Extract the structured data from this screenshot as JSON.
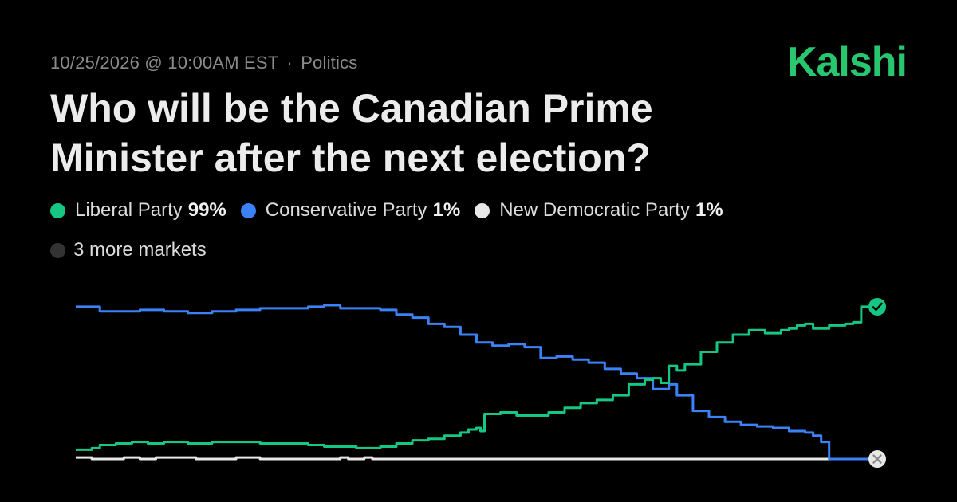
{
  "meta": {
    "date": "10/25/2026",
    "time": "@ 10:00AM EST",
    "separator": "·",
    "category": "Politics"
  },
  "brand": {
    "name": "Kalshi",
    "color": "#28c76f"
  },
  "title": "Who will be the Canadian Prime Minister after the next election?",
  "legend": {
    "items": [
      {
        "name": "Liberal Party",
        "value": "99%",
        "color": "#16c784"
      },
      {
        "name": "Conservative Party",
        "value": "1%",
        "color": "#3b82f6"
      },
      {
        "name": "New Democratic Party",
        "value": "1%",
        "color": "#e8e8e8"
      }
    ],
    "more": {
      "label": "3 more markets",
      "color": "#333333"
    }
  },
  "chart_data": {
    "type": "line",
    "x_range": [
      0,
      100
    ],
    "y_range": [
      0,
      100
    ],
    "grid": false,
    "resolution_markers": [
      {
        "series": "Liberal Party",
        "icon": "check-icon",
        "value": 99
      },
      {
        "series": "New Democratic Party",
        "icon": "x-icon",
        "value": 1
      }
    ],
    "series": [
      {
        "name": "Liberal Party",
        "color": "#16c784",
        "points": [
          [
            0,
            7
          ],
          [
            2,
            8
          ],
          [
            3,
            10
          ],
          [
            5,
            11
          ],
          [
            7,
            12
          ],
          [
            9,
            11
          ],
          [
            11,
            12
          ],
          [
            14,
            11
          ],
          [
            17,
            12
          ],
          [
            20,
            12
          ],
          [
            23,
            11
          ],
          [
            26,
            11
          ],
          [
            29,
            10
          ],
          [
            31,
            9
          ],
          [
            33,
            9
          ],
          [
            35,
            8
          ],
          [
            38,
            9
          ],
          [
            40,
            11
          ],
          [
            42,
            13
          ],
          [
            44,
            14
          ],
          [
            46,
            16
          ],
          [
            48,
            18
          ],
          [
            49,
            20
          ],
          [
            50,
            21
          ],
          [
            50.5,
            19
          ],
          [
            51,
            30
          ],
          [
            53,
            31
          ],
          [
            55,
            29
          ],
          [
            57,
            29
          ],
          [
            59,
            31
          ],
          [
            61,
            34
          ],
          [
            63,
            37
          ],
          [
            65,
            39
          ],
          [
            67,
            42
          ],
          [
            69,
            49
          ],
          [
            71,
            52
          ],
          [
            72,
            53
          ],
          [
            73,
            50
          ],
          [
            74,
            61
          ],
          [
            75,
            58
          ],
          [
            76,
            62
          ],
          [
            78,
            70
          ],
          [
            80,
            76
          ],
          [
            82,
            81
          ],
          [
            84,
            84
          ],
          [
            86,
            82
          ],
          [
            88,
            84
          ],
          [
            89,
            85
          ],
          [
            90,
            87
          ],
          [
            91,
            88
          ],
          [
            92,
            85
          ],
          [
            94,
            87
          ],
          [
            96,
            88
          ],
          [
            97,
            89
          ],
          [
            98,
            99
          ],
          [
            100,
            99
          ]
        ]
      },
      {
        "name": "Conservative Party",
        "color": "#3b82f6",
        "points": [
          [
            0,
            99
          ],
          [
            3,
            96
          ],
          [
            5,
            96
          ],
          [
            8,
            97
          ],
          [
            11,
            96
          ],
          [
            14,
            95
          ],
          [
            17,
            96
          ],
          [
            20,
            97
          ],
          [
            23,
            98
          ],
          [
            26,
            98
          ],
          [
            29,
            99
          ],
          [
            31,
            100
          ],
          [
            33,
            98
          ],
          [
            35,
            98
          ],
          [
            38,
            97
          ],
          [
            40,
            94
          ],
          [
            42,
            92
          ],
          [
            44,
            88
          ],
          [
            46,
            86
          ],
          [
            48,
            81
          ],
          [
            50,
            76
          ],
          [
            52,
            74
          ],
          [
            54,
            75
          ],
          [
            56,
            73
          ],
          [
            58,
            66
          ],
          [
            60,
            67
          ],
          [
            62,
            65
          ],
          [
            64,
            63
          ],
          [
            66,
            59
          ],
          [
            68,
            56
          ],
          [
            70,
            53
          ],
          [
            72,
            46
          ],
          [
            74,
            49
          ],
          [
            75,
            42
          ],
          [
            77,
            32
          ],
          [
            79,
            28
          ],
          [
            81,
            25
          ],
          [
            83,
            23
          ],
          [
            85,
            22
          ],
          [
            87,
            21
          ],
          [
            89,
            19
          ],
          [
            91,
            18
          ],
          [
            92,
            16
          ],
          [
            93,
            12
          ],
          [
            94,
            1
          ],
          [
            96,
            1
          ],
          [
            98,
            1
          ],
          [
            100,
            1
          ]
        ]
      },
      {
        "name": "New Democratic Party",
        "color": "#e8e8e8",
        "points": [
          [
            0,
            2
          ],
          [
            2,
            1
          ],
          [
            4,
            1
          ],
          [
            6,
            2
          ],
          [
            8,
            1
          ],
          [
            10,
            2
          ],
          [
            13,
            2
          ],
          [
            15,
            1
          ],
          [
            17,
            1
          ],
          [
            20,
            2
          ],
          [
            23,
            1
          ],
          [
            26,
            1
          ],
          [
            29,
            1
          ],
          [
            31,
            1
          ],
          [
            33,
            2
          ],
          [
            34,
            1
          ],
          [
            35,
            1
          ],
          [
            36,
            2
          ],
          [
            37,
            1
          ],
          [
            40,
            1
          ],
          [
            45,
            1
          ],
          [
            50,
            1
          ],
          [
            60,
            1
          ],
          [
            70,
            1
          ],
          [
            80,
            1
          ],
          [
            90,
            1
          ],
          [
            100,
            1
          ]
        ]
      }
    ]
  }
}
